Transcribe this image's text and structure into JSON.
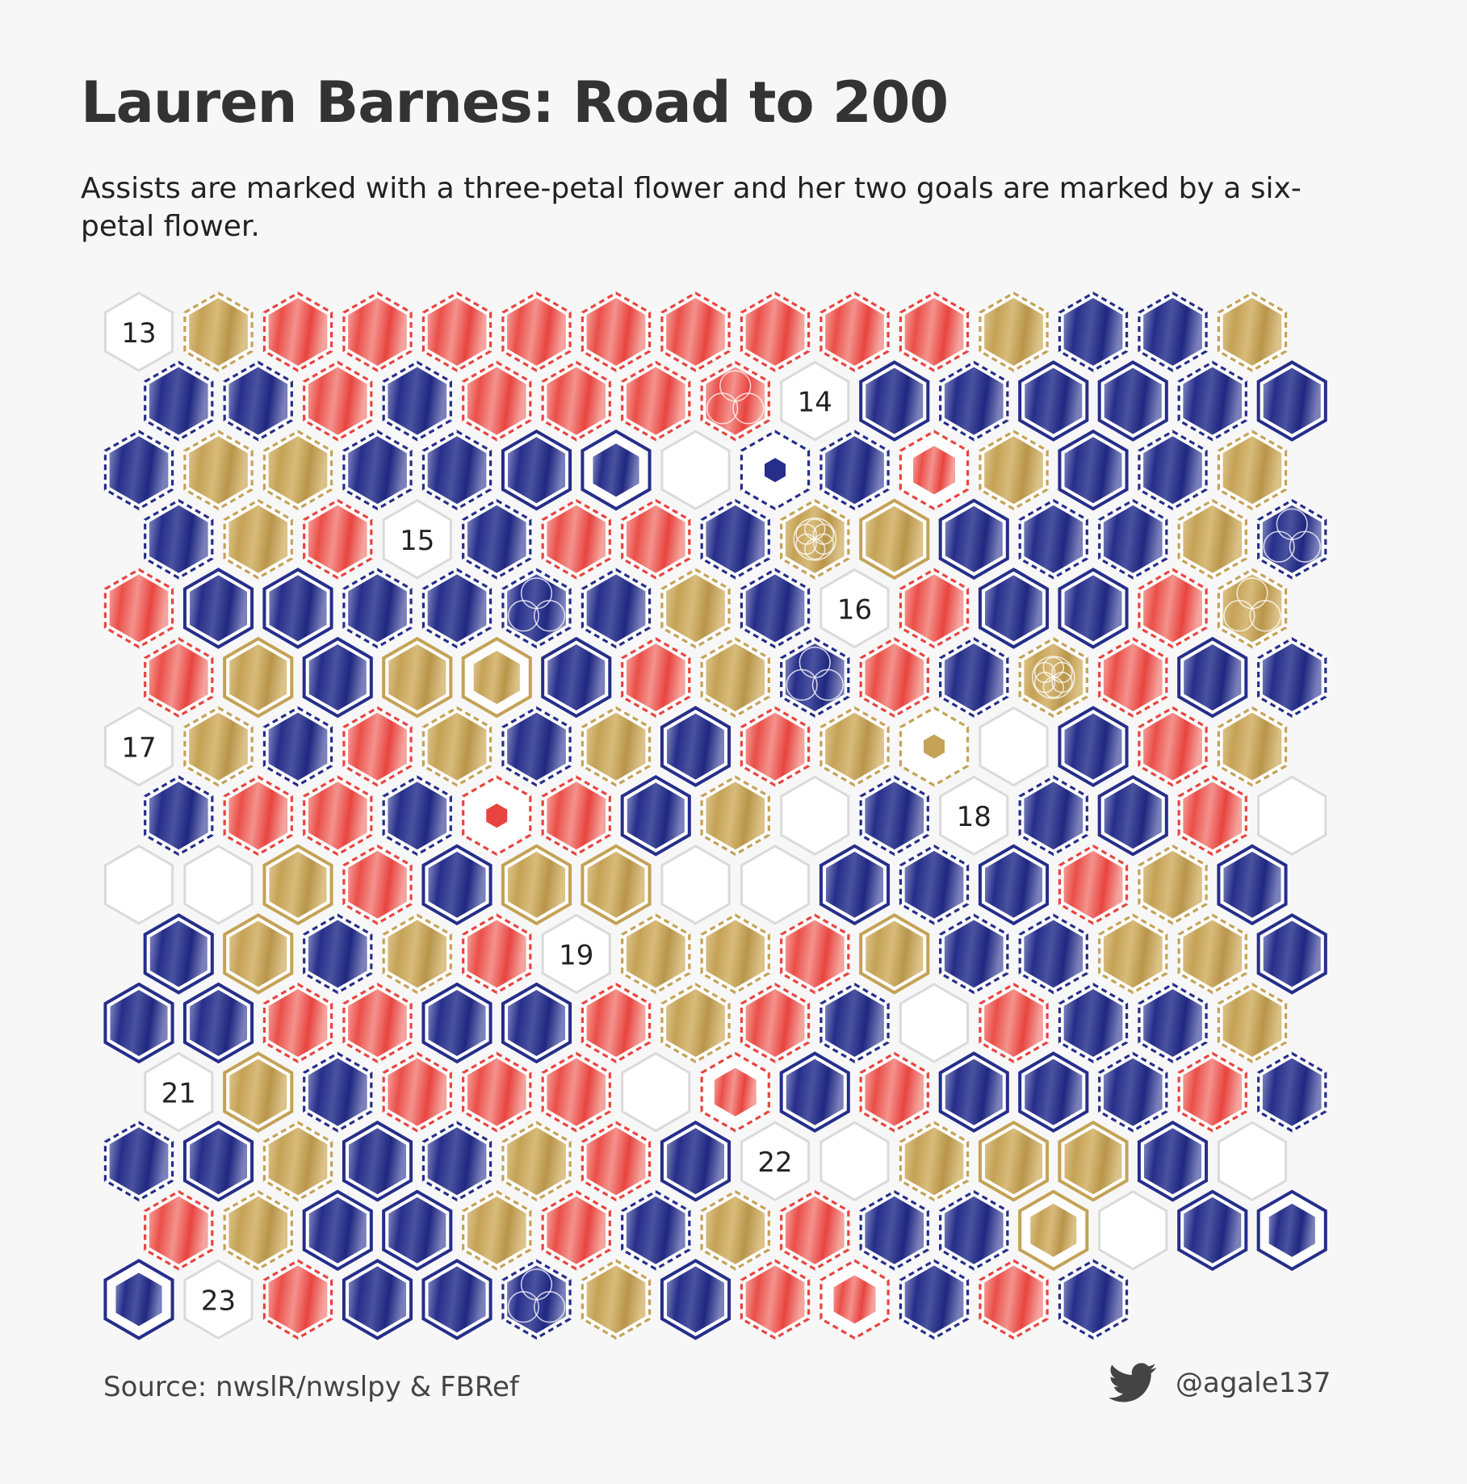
{
  "title": "Lauren Barnes: Road to 200",
  "subtitle": "Assists are marked with a three-petal flower and her two goals are marked by a six-petal flower.",
  "source": "Source: nwslR/nwslpy & FBRef",
  "credit": {
    "handle": "@agale137",
    "icon": "twitter-bird-icon"
  },
  "colors": {
    "red": "#e8443f",
    "gold": "#c4a256",
    "navy": "#262e8a",
    "empty_stroke": "#dadada"
  },
  "chart_data": {
    "type": "hexagon waffle",
    "title": "Lauren Barnes: Road to 200",
    "subtitle": "Assists are marked with a three-petal flower and her two goals are marked by a six-petal flower.",
    "legend": {
      "cell_colors": {
        "R": "red",
        "G": "gold",
        "B": "navy",
        "E": "empty",
        "L": "season label"
      },
      "border_styles": {
        "d": "dashed",
        "s": "solid",
        "r": "ring (small inner fill)",
        "t": "tiny center hexagon"
      },
      "marks": {
        "a": "assist (three-petal flower)",
        "g": "goal (six-petal flower)"
      }
    },
    "seasons": [
      "13",
      "14",
      "15",
      "16",
      "17",
      "18",
      "19",
      "21",
      "22",
      "23"
    ],
    "rows": [
      "L13 Gd Rd Rd Rd Rd Rd Rd Rd Rd Rd Gd Bd Bd Gd",
      "Bd Bd Rd Bd Rd Rd Rd Rda L14 Bs Bd Bs Bs Bd Bs",
      "Bd Gd Gd Bd Bd Bs Br E Bt Bd Rr Gd Bs Bd Gd",
      "Bd Gd Rd L15 Bd Rd Rd Bd Gdg Gs Bs Bd Bd Gd Bda",
      "Rd Bs Bs Bd Bd Bda Bd Gd Bd L16 Rd Bs Bs Rd Gda",
      "Rd Gs Bs Gs Gr Bs Rd Gd Bda Rd Bd Gdg Rd Bs Bd",
      "L17 Gd Bd Rd Gd Bd Gd Bs Rd Gd Gt E Bs Rd Gd",
      "Bd Rd Rd Bd Rt Rd Bs Gd E Bd L18 Bd Bs Rd E",
      "E E Gs Rd Bs Gs Gs E E Bs Bd Bs Rd Gd Bs",
      "Bs Gs Bd Gd Rd L19 Gd Gd Rd Gs Bd Bd Gd Gd Bs",
      "Bs Bs Rd Rd Bs Bs Rd Gd Rd Bd E Rd Bd Bd Gd",
      "L21 Gs Bd Rd Rd Rd E Rr Bs Rd Bs Bs Bd Rd Bd",
      "Bd Bs Gd Bs Bd Gd Rd Bs L22 E Gd Gs Gs Bs E",
      "Rd Gd Bs Bs Gd Rd Bd Gd Rd Bd Bd Gr E Bs Br",
      "Br L23 Rd Bs Bs Bda Gd Bs Rd Rr Bd Rd Bd"
    ]
  }
}
